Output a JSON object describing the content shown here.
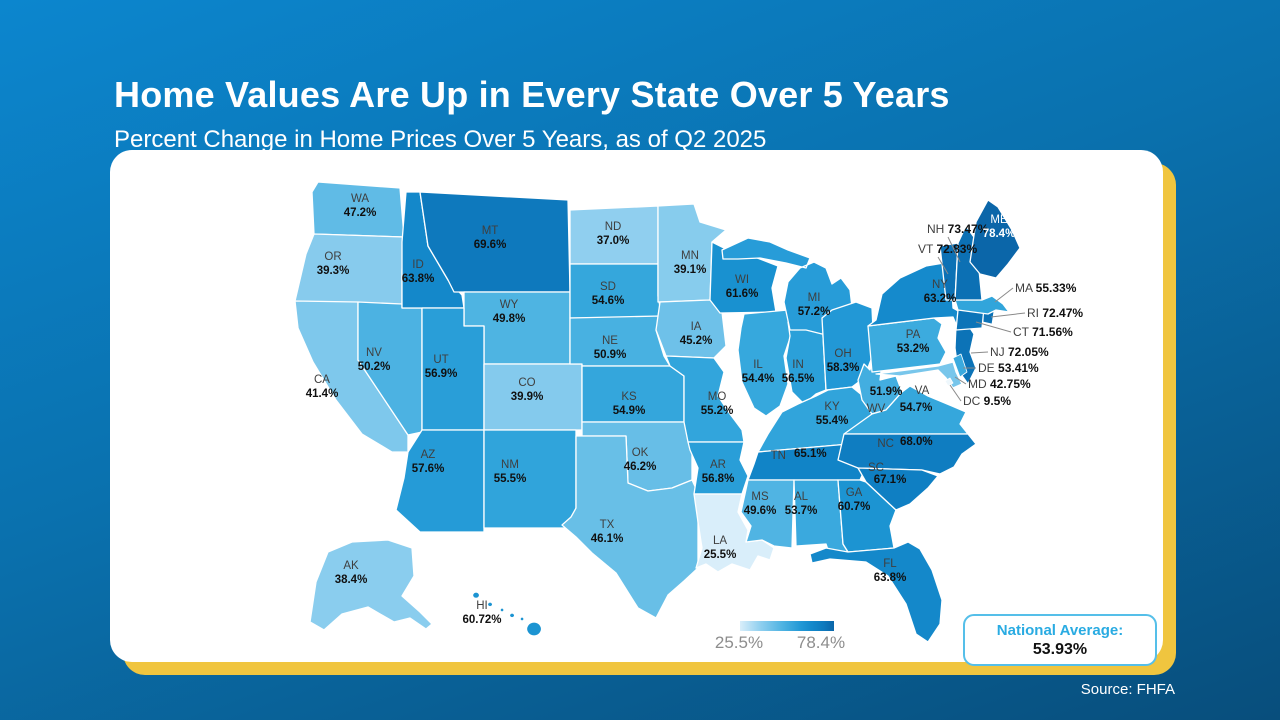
{
  "title": "Home Values Are Up in Every State Over 5 Years",
  "subtitle": "Percent Change in Home Prices Over 5 Years, as of Q2 2025",
  "source": "Source: FHFA",
  "legend": {
    "min_label": "25.5%",
    "max_label": "78.4%"
  },
  "national_average": {
    "label": "National Average:",
    "value": "53.93%"
  },
  "colors": {
    "background_top": "#0c86ce",
    "background_bottom": "#084e7c",
    "card_accent_yellow": "#f0c53f",
    "scale_min_color": "#d9eefa",
    "scale_max_color": "#0b66a9",
    "national_average_label_color": "#29abe2"
  },
  "states": [
    {
      "abbr": "WA",
      "value": "47.2"
    },
    {
      "abbr": "OR",
      "value": "39.3"
    },
    {
      "abbr": "CA",
      "value": "41.4"
    },
    {
      "abbr": "NV",
      "value": "50.2"
    },
    {
      "abbr": "ID",
      "value": "63.8"
    },
    {
      "abbr": "MT",
      "value": "69.6"
    },
    {
      "abbr": "WY",
      "value": "49.8"
    },
    {
      "abbr": "UT",
      "value": "56.9"
    },
    {
      "abbr": "CO",
      "value": "39.9"
    },
    {
      "abbr": "AZ",
      "value": "57.6"
    },
    {
      "abbr": "NM",
      "value": "55.5"
    },
    {
      "abbr": "ND",
      "value": "37.0"
    },
    {
      "abbr": "SD",
      "value": "54.6"
    },
    {
      "abbr": "NE",
      "value": "50.9"
    },
    {
      "abbr": "KS",
      "value": "54.9"
    },
    {
      "abbr": "OK",
      "value": "46.2"
    },
    {
      "abbr": "TX",
      "value": "46.1"
    },
    {
      "abbr": "MN",
      "value": "39.1"
    },
    {
      "abbr": "IA",
      "value": "45.2"
    },
    {
      "abbr": "MO",
      "value": "55.2"
    },
    {
      "abbr": "AR",
      "value": "56.8"
    },
    {
      "abbr": "LA",
      "value": "25.5"
    },
    {
      "abbr": "WI",
      "value": "61.6"
    },
    {
      "abbr": "IL",
      "value": "54.4"
    },
    {
      "abbr": "IN",
      "value": "56.5"
    },
    {
      "abbr": "MI",
      "value": "57.2"
    },
    {
      "abbr": "OH",
      "value": "58.3"
    },
    {
      "abbr": "KY",
      "value": "55.4"
    },
    {
      "abbr": "TN",
      "value": "65.1"
    },
    {
      "abbr": "MS",
      "value": "49.6"
    },
    {
      "abbr": "AL",
      "value": "53.7"
    },
    {
      "abbr": "GA",
      "value": "60.7"
    },
    {
      "abbr": "FL",
      "value": "63.8"
    },
    {
      "abbr": "WV",
      "value": "51.9"
    },
    {
      "abbr": "VA",
      "value": "54.7"
    },
    {
      "abbr": "NC",
      "value": "68.0"
    },
    {
      "abbr": "SC",
      "value": "67.1"
    },
    {
      "abbr": "PA",
      "value": "53.2"
    },
    {
      "abbr": "NY",
      "value": "63.2"
    },
    {
      "abbr": "NJ",
      "value": "72.05"
    },
    {
      "abbr": "DE",
      "value": "53.41"
    },
    {
      "abbr": "MD",
      "value": "42.75"
    },
    {
      "abbr": "DC",
      "value": "9.5"
    },
    {
      "abbr": "CT",
      "value": "71.56"
    },
    {
      "abbr": "RI",
      "value": "72.47"
    },
    {
      "abbr": "MA",
      "value": "55.33"
    },
    {
      "abbr": "VT",
      "value": "72.83"
    },
    {
      "abbr": "NH",
      "value": "73.47"
    },
    {
      "abbr": "ME",
      "value": "78.4"
    },
    {
      "abbr": "AK",
      "value": "38.4"
    },
    {
      "abbr": "HI",
      "value": "60.72"
    }
  ],
  "chart_data": {
    "type": "heatmap",
    "subtype": "us-choropleth",
    "title": "Home Values Are Up in Every State Over 5 Years",
    "subtitle": "Percent Change in Home Prices Over 5 Years, as of Q2 2025",
    "categories": [
      "WA",
      "OR",
      "CA",
      "NV",
      "ID",
      "MT",
      "WY",
      "UT",
      "CO",
      "AZ",
      "NM",
      "ND",
      "SD",
      "NE",
      "KS",
      "OK",
      "TX",
      "MN",
      "IA",
      "MO",
      "AR",
      "LA",
      "WI",
      "IL",
      "IN",
      "MI",
      "OH",
      "KY",
      "TN",
      "MS",
      "AL",
      "GA",
      "FL",
      "WV",
      "VA",
      "NC",
      "SC",
      "PA",
      "NY",
      "NJ",
      "DE",
      "MD",
      "DC",
      "CT",
      "RI",
      "MA",
      "VT",
      "NH",
      "ME",
      "AK",
      "HI"
    ],
    "values": [
      47.2,
      39.3,
      41.4,
      50.2,
      63.8,
      69.6,
      49.8,
      56.9,
      39.9,
      57.6,
      55.5,
      37.0,
      54.6,
      50.9,
      54.9,
      46.2,
      46.1,
      39.1,
      45.2,
      55.2,
      56.8,
      25.5,
      61.6,
      54.4,
      56.5,
      57.2,
      58.3,
      55.4,
      65.1,
      49.6,
      53.7,
      60.7,
      63.8,
      51.9,
      54.7,
      68.0,
      67.1,
      53.2,
      63.2,
      72.05,
      53.41,
      42.75,
      9.5,
      71.56,
      72.47,
      55.33,
      72.83,
      73.47,
      78.4,
      38.4,
      60.72
    ],
    "legend": {
      "min": 25.5,
      "max": 78.4,
      "position": "bottom-center",
      "orientation": "horizontal"
    },
    "national_average": 53.93,
    "unit": "%",
    "source": "FHFA"
  }
}
